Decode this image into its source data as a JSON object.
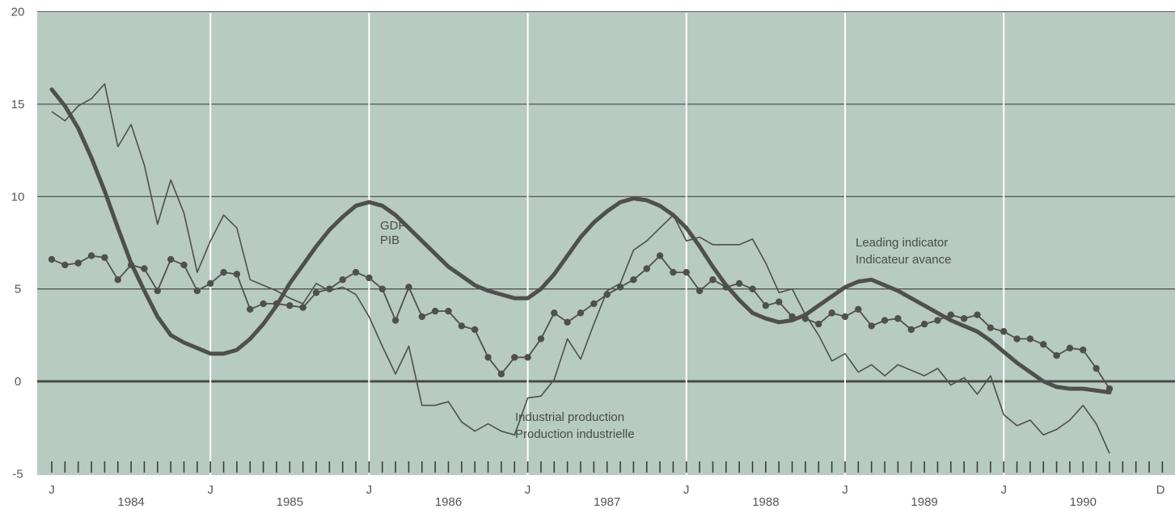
{
  "chart_data": {
    "type": "line",
    "x_unit": "month",
    "x_start": "1984-01",
    "x_end": "1990-12",
    "ylim": [
      -5,
      20
    ],
    "yticks": [
      "-5",
      "0",
      "5",
      "10",
      "15",
      "20"
    ],
    "xtick_labels": [
      "J",
      "J",
      "J",
      "J",
      "J",
      "J",
      "J",
      "D"
    ],
    "year_labels": [
      "1984",
      "1985",
      "1986",
      "1987",
      "1988",
      "1989",
      "1990"
    ],
    "grid": true,
    "colors": {
      "background": "#b7cbc0",
      "gridline": "#ffffff",
      "hline": "#4a4a4a",
      "line": "#4f4f4f"
    },
    "series": [
      {
        "name": "GDP / PIB",
        "label_lines": [
          "GDP",
          "PIB"
        ],
        "style": "line-markers",
        "values": [
          6.6,
          6.3,
          6.4,
          6.8,
          6.7,
          5.5,
          6.3,
          6.1,
          4.9,
          6.6,
          6.3,
          4.9,
          5.3,
          5.9,
          5.8,
          3.9,
          4.2,
          4.2,
          4.1,
          4.0,
          4.8,
          5.0,
          5.5,
          5.9,
          5.6,
          5.0,
          3.3,
          5.1,
          3.5,
          3.8,
          3.8,
          3.0,
          2.8,
          1.3,
          0.4,
          1.3,
          1.3,
          2.3,
          3.7,
          3.2,
          3.7,
          4.2,
          4.7,
          5.1,
          5.5,
          6.1,
          6.8,
          5.9,
          5.9,
          4.9,
          5.5,
          5.1,
          5.3,
          5.0,
          4.1,
          4.3,
          3.5,
          3.4,
          3.1,
          3.7,
          3.5,
          3.9,
          3.0,
          3.3,
          3.4,
          2.8,
          3.1,
          3.3,
          3.6,
          3.4,
          3.6,
          2.9,
          2.7,
          2.3,
          2.3,
          2.0,
          1.4,
          1.8,
          1.7,
          0.7,
          -0.4
        ]
      },
      {
        "name": "Industrial production / Production industrielle",
        "label_lines": [
          "Industrial production",
          "Production industrielle"
        ],
        "style": "thin-line",
        "values": [
          14.6,
          14.1,
          14.9,
          15.3,
          16.1,
          12.7,
          13.9,
          11.7,
          8.5,
          10.9,
          9.1,
          5.9,
          7.6,
          9.0,
          8.3,
          5.5,
          5.2,
          4.9,
          4.5,
          4.2,
          5.3,
          4.9,
          5.1,
          4.7,
          3.5,
          1.9,
          0.4,
          1.9,
          -1.3,
          -1.3,
          -1.1,
          -2.2,
          -2.7,
          -2.3,
          -2.7,
          -2.9,
          -0.9,
          -0.8,
          0.1,
          2.3,
          1.2,
          3.1,
          4.9,
          5.3,
          7.1,
          7.6,
          8.3,
          9.0,
          7.6,
          7.8,
          7.4,
          7.4,
          7.4,
          7.7,
          6.4,
          4.8,
          5.0,
          3.6,
          2.5,
          1.1,
          1.5,
          0.5,
          0.9,
          0.3,
          0.9,
          0.6,
          0.3,
          0.7,
          -0.2,
          0.2,
          -0.7,
          0.3,
          -1.8,
          -2.4,
          -2.1,
          -2.9,
          -2.6,
          -2.1,
          -1.3,
          -2.3,
          -3.9
        ]
      },
      {
        "name": "Leading indicator / Indicateur avance",
        "label_lines": [
          "Leading indicator",
          "Indicateur avance"
        ],
        "style": "thick-line",
        "values": [
          15.8,
          14.9,
          13.7,
          12.1,
          10.3,
          8.3,
          6.4,
          4.9,
          3.5,
          2.5,
          2.1,
          1.8,
          1.5,
          1.5,
          1.7,
          2.3,
          3.1,
          4.1,
          5.3,
          6.3,
          7.3,
          8.2,
          8.9,
          9.5,
          9.7,
          9.5,
          9.0,
          8.3,
          7.6,
          6.9,
          6.2,
          5.7,
          5.2,
          4.9,
          4.7,
          4.5,
          4.5,
          5.0,
          5.8,
          6.8,
          7.8,
          8.6,
          9.2,
          9.7,
          9.9,
          9.8,
          9.5,
          9.0,
          8.3,
          7.3,
          6.2,
          5.2,
          4.4,
          3.7,
          3.4,
          3.2,
          3.3,
          3.6,
          4.1,
          4.6,
          5.1,
          5.4,
          5.5,
          5.2,
          4.9,
          4.5,
          4.1,
          3.7,
          3.3,
          3.0,
          2.7,
          2.2,
          1.6,
          1.0,
          0.5,
          0.0,
          -0.3,
          -0.4,
          -0.4,
          -0.5,
          -0.6
        ]
      }
    ]
  }
}
